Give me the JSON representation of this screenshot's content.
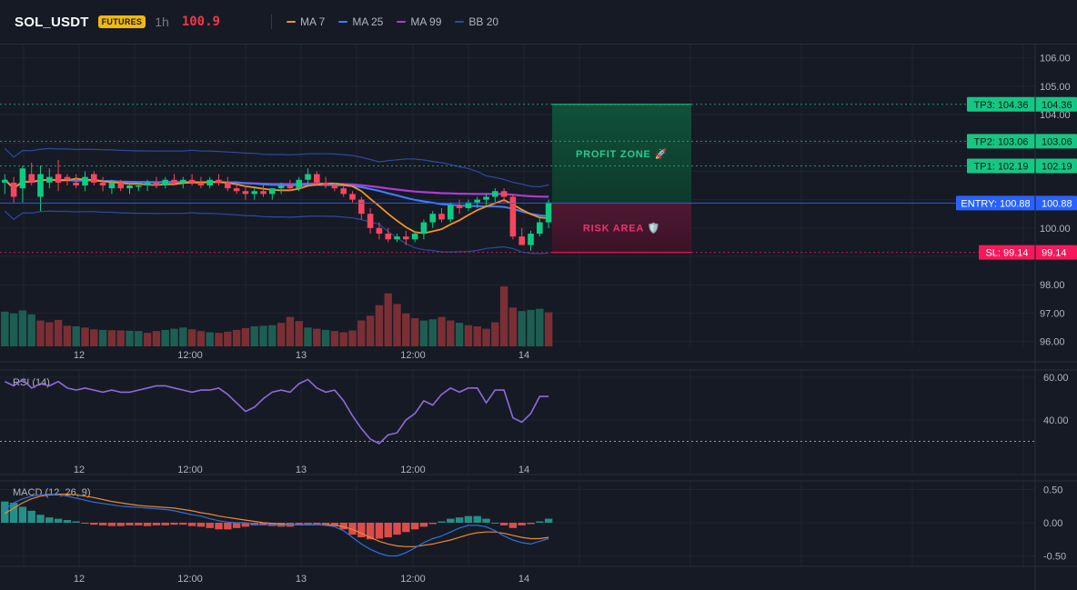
{
  "header": {
    "symbol": "SOL_USDT",
    "badge": "FUTURES",
    "timeframe": "1h",
    "price": "100.9",
    "indicators": [
      {
        "label": "MA 7",
        "color": "#f7931a"
      },
      {
        "label": "MA 25",
        "color": "#3d7fff"
      },
      {
        "label": "MA 99",
        "color": "#b03ad8"
      },
      {
        "label": "BB 20",
        "color": "#2c4a9e"
      }
    ]
  },
  "chart_data": [
    {
      "type": "candlestick",
      "panel": "price",
      "y_ticks": [
        "106.00",
        "105.00",
        "104.00",
        "100.00",
        "98.00",
        "97.00",
        "96.00"
      ],
      "x_tick_labels": [
        "12",
        "12:00",
        "13",
        "12:00",
        "14"
      ],
      "candles": [
        [
          101.6,
          101.9,
          101.2,
          101.7
        ],
        [
          101.6,
          101.8,
          100.9,
          101.1
        ],
        [
          101.4,
          102.2,
          100.9,
          102.1
        ],
        [
          101.9,
          102.3,
          101.5,
          101.6
        ],
        [
          101.1,
          102.2,
          100.6,
          101.9
        ],
        [
          101.6,
          102.1,
          101.4,
          101.8
        ],
        [
          101.9,
          102.4,
          101.3,
          101.6
        ],
        [
          101.8,
          101.9,
          101.5,
          101.7
        ],
        [
          101.6,
          101.9,
          101.4,
          101.5
        ],
        [
          101.5,
          102.0,
          101.3,
          101.8
        ],
        [
          101.9,
          102.0,
          101.5,
          101.6
        ],
        [
          101.6,
          101.8,
          101.3,
          101.5
        ],
        [
          101.4,
          101.7,
          101.2,
          101.6
        ],
        [
          101.6,
          101.7,
          101.3,
          101.4
        ],
        [
          101.4,
          101.6,
          101.2,
          101.5
        ],
        [
          101.5,
          101.6,
          101.3,
          101.5
        ],
        [
          101.5,
          101.7,
          101.3,
          101.6
        ],
        [
          101.6,
          101.8,
          101.4,
          101.5
        ],
        [
          101.5,
          101.8,
          101.4,
          101.7
        ],
        [
          101.7,
          101.9,
          101.5,
          101.6
        ],
        [
          101.6,
          101.8,
          101.4,
          101.7
        ],
        [
          101.7,
          101.9,
          101.5,
          101.6
        ],
        [
          101.6,
          101.8,
          101.4,
          101.5
        ],
        [
          101.5,
          101.8,
          101.4,
          101.7
        ],
        [
          101.7,
          101.9,
          101.5,
          101.6
        ],
        [
          101.6,
          101.8,
          101.3,
          101.4
        ],
        [
          101.4,
          101.6,
          101.2,
          101.3
        ],
        [
          101.3,
          101.5,
          101.0,
          101.2
        ],
        [
          101.2,
          101.4,
          101.0,
          101.3
        ],
        [
          101.3,
          101.5,
          101.1,
          101.2
        ],
        [
          101.2,
          101.4,
          101.0,
          101.4
        ],
        [
          101.4,
          101.6,
          101.2,
          101.5
        ],
        [
          101.5,
          101.7,
          101.3,
          101.4
        ],
        [
          101.4,
          101.8,
          101.3,
          101.7
        ],
        [
          101.7,
          102.1,
          101.5,
          101.9
        ],
        [
          101.9,
          102.0,
          101.5,
          101.6
        ],
        [
          101.6,
          101.8,
          101.4,
          101.5
        ],
        [
          101.5,
          101.6,
          101.3,
          101.4
        ],
        [
          101.4,
          101.5,
          101.1,
          101.2
        ],
        [
          101.2,
          101.3,
          100.9,
          101.0
        ],
        [
          101.0,
          101.1,
          100.3,
          100.5
        ],
        [
          100.5,
          100.7,
          99.8,
          100.0
        ],
        [
          100.0,
          100.2,
          99.6,
          99.8
        ],
        [
          99.8,
          100.0,
          99.5,
          99.6
        ],
        [
          99.6,
          99.8,
          99.5,
          99.7
        ],
        [
          99.7,
          99.9,
          99.4,
          99.6
        ],
        [
          99.6,
          99.9,
          99.5,
          99.8
        ],
        [
          99.8,
          100.3,
          99.6,
          100.2
        ],
        [
          100.2,
          100.6,
          100.0,
          100.5
        ],
        [
          100.5,
          100.7,
          100.2,
          100.3
        ],
        [
          100.3,
          100.9,
          100.2,
          100.8
        ],
        [
          100.8,
          101.0,
          100.5,
          100.7
        ],
        [
          100.7,
          101.0,
          100.6,
          100.9
        ],
        [
          100.9,
          101.1,
          100.7,
          101.0
        ],
        [
          101.0,
          101.2,
          100.8,
          101.1
        ],
        [
          101.1,
          101.4,
          100.9,
          101.3
        ],
        [
          101.3,
          101.4,
          100.9,
          101.1
        ],
        [
          101.1,
          101.2,
          99.6,
          99.7
        ],
        [
          99.7,
          100.0,
          99.4,
          99.4
        ],
        [
          99.4,
          99.9,
          99.2,
          99.8
        ],
        [
          99.8,
          100.4,
          99.7,
          100.2
        ],
        [
          100.2,
          101.0,
          100.0,
          100.9
        ]
      ],
      "volume": [
        [
          1180,
          1
        ],
        [
          1120,
          1
        ],
        [
          1220,
          1
        ],
        [
          1090,
          1
        ],
        [
          880,
          0
        ],
        [
          820,
          0
        ],
        [
          900,
          0
        ],
        [
          700,
          0
        ],
        [
          680,
          1
        ],
        [
          640,
          0
        ],
        [
          580,
          0
        ],
        [
          560,
          1
        ],
        [
          550,
          0
        ],
        [
          540,
          0
        ],
        [
          530,
          1
        ],
        [
          520,
          1
        ],
        [
          460,
          0
        ],
        [
          520,
          0
        ],
        [
          560,
          1
        ],
        [
          600,
          1
        ],
        [
          640,
          1
        ],
        [
          580,
          0
        ],
        [
          520,
          0
        ],
        [
          480,
          1
        ],
        [
          460,
          0
        ],
        [
          500,
          0
        ],
        [
          560,
          0
        ],
        [
          620,
          0
        ],
        [
          680,
          1
        ],
        [
          700,
          1
        ],
        [
          720,
          1
        ],
        [
          800,
          0
        ],
        [
          1000,
          0
        ],
        [
          860,
          0
        ],
        [
          640,
          1
        ],
        [
          600,
          0
        ],
        [
          560,
          1
        ],
        [
          520,
          0
        ],
        [
          480,
          0
        ],
        [
          540,
          0
        ],
        [
          880,
          0
        ],
        [
          1040,
          0
        ],
        [
          1400,
          0
        ],
        [
          1800,
          0
        ],
        [
          1440,
          0
        ],
        [
          1120,
          0
        ],
        [
          960,
          0
        ],
        [
          880,
          1
        ],
        [
          920,
          1
        ],
        [
          1000,
          0
        ],
        [
          880,
          0
        ],
        [
          800,
          1
        ],
        [
          720,
          0
        ],
        [
          680,
          0
        ],
        [
          600,
          0
        ],
        [
          820,
          0
        ],
        [
          2040,
          0
        ],
        [
          1320,
          0
        ],
        [
          1200,
          1
        ],
        [
          1240,
          1
        ],
        [
          1280,
          1
        ],
        [
          1160,
          0
        ]
      ]
    },
    {
      "type": "line",
      "panel": "rsi",
      "name": "RSI (14)",
      "y_ticks": [
        "60.00",
        "40.00"
      ],
      "x_tick_labels": [
        "12",
        "12:00",
        "13",
        "12:00",
        "14"
      ],
      "values": [
        58,
        56,
        59,
        55,
        57,
        56,
        58,
        55,
        54,
        55,
        54,
        53,
        54,
        53,
        53,
        54,
        55,
        56,
        56,
        55,
        54,
        53,
        54,
        54,
        55,
        52,
        48,
        44,
        46,
        50,
        53,
        54,
        53,
        57,
        59,
        55,
        53,
        54,
        49,
        42,
        36,
        31,
        29,
        33,
        34,
        40,
        43,
        49,
        47,
        52,
        55,
        53,
        55,
        55,
        48,
        54,
        54,
        41,
        39,
        43,
        51,
        51
      ],
      "threshold": 30
    },
    {
      "type": "bar",
      "panel": "macd",
      "name": "MACD (12, 26, 9)",
      "y_ticks": [
        "0.50",
        "0.00",
        "-0.50"
      ],
      "x_tick_labels": [
        "12",
        "12:00",
        "13",
        "12:00",
        "14"
      ],
      "histogram": [
        0.32,
        0.3,
        0.24,
        0.18,
        0.12,
        0.08,
        0.06,
        0.04,
        0.02,
        -0.01,
        -0.03,
        -0.04,
        -0.05,
        -0.05,
        -0.04,
        -0.04,
        -0.05,
        -0.04,
        -0.04,
        -0.03,
        -0.03,
        -0.05,
        -0.06,
        -0.08,
        -0.1,
        -0.1,
        -0.08,
        -0.06,
        -0.04,
        -0.04,
        -0.05,
        -0.06,
        -0.06,
        -0.04,
        -0.02,
        -0.02,
        -0.03,
        -0.04,
        -0.1,
        -0.18,
        -0.22,
        -0.25,
        -0.24,
        -0.22,
        -0.18,
        -0.14,
        -0.1,
        -0.06,
        -0.02,
        0.02,
        0.06,
        0.08,
        0.1,
        0.1,
        0.06,
        0.0,
        -0.04,
        -0.08,
        -0.04,
        -0.02,
        0.02,
        0.06
      ],
      "macd_line": [
        0.2,
        0.3,
        0.36,
        0.4,
        0.42,
        0.43,
        0.42,
        0.4,
        0.37,
        0.34,
        0.31,
        0.29,
        0.27,
        0.25,
        0.24,
        0.23,
        0.22,
        0.21,
        0.2,
        0.18,
        0.15,
        0.12,
        0.1,
        0.06,
        0.03,
        0.01,
        0.0,
        0.0,
        -0.02,
        -0.03,
        -0.03,
        -0.04,
        -0.03,
        -0.03,
        -0.02,
        -0.03,
        -0.04,
        -0.06,
        -0.12,
        -0.22,
        -0.32,
        -0.4,
        -0.46,
        -0.5,
        -0.5,
        -0.45,
        -0.38,
        -0.3,
        -0.24,
        -0.2,
        -0.14,
        -0.08,
        -0.04,
        -0.04,
        -0.06,
        -0.12,
        -0.2,
        -0.26,
        -0.3,
        -0.32,
        -0.28,
        -0.24
      ],
      "signal_line": [
        0.14,
        0.22,
        0.3,
        0.36,
        0.4,
        0.42,
        0.43,
        0.43,
        0.42,
        0.4,
        0.38,
        0.35,
        0.32,
        0.3,
        0.28,
        0.26,
        0.25,
        0.24,
        0.23,
        0.22,
        0.2,
        0.18,
        0.15,
        0.13,
        0.1,
        0.08,
        0.06,
        0.04,
        0.02,
        0.0,
        -0.01,
        -0.02,
        -0.03,
        -0.03,
        -0.03,
        -0.03,
        -0.03,
        -0.04,
        -0.06,
        -0.1,
        -0.16,
        -0.22,
        -0.28,
        -0.32,
        -0.35,
        -0.36,
        -0.36,
        -0.34,
        -0.32,
        -0.29,
        -0.26,
        -0.22,
        -0.18,
        -0.15,
        -0.14,
        -0.14,
        -0.16,
        -0.19,
        -0.22,
        -0.24,
        -0.24,
        -0.22
      ]
    }
  ],
  "trade_setup": {
    "tp3": "TP3: 104.36",
    "tp3_price": "104.36",
    "tp2": "TP2: 103.06",
    "tp2_price": "103.06",
    "tp1": "TP1: 102.19",
    "tp1_price": "102.19",
    "entry": "ENTRY: 100.88",
    "entry_price": "100.88",
    "sl": "SL: 99.14",
    "sl_price": "99.14",
    "profit_zone": "PROFIT ZONE 🚀",
    "risk_area": "RISK AREA 🛡️"
  },
  "colors": {
    "bull": "#26a69a",
    "bear": "#ef5350",
    "candle_bull": "#0ecb81",
    "candle_bear": "#f6465d",
    "ma7": "#f7931a",
    "ma25": "#3d7fff",
    "ma99": "#b03ad8",
    "bb": "#2c4a9e",
    "rsi": "#8e6bd9",
    "tp": "#16c784",
    "entry": "#2962ff",
    "sl": "#f6185a"
  }
}
